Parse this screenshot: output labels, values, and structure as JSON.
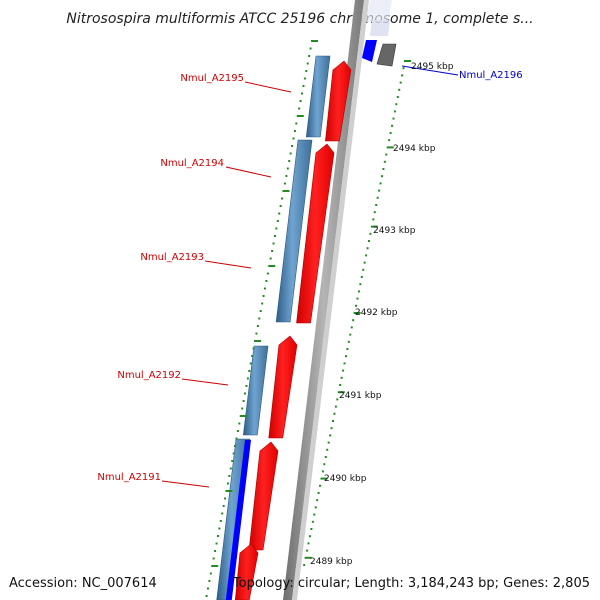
{
  "title": "Nitrosospira multiformis ATCC 25196 chromosome 1, complete s...",
  "footer": {
    "accession": "Accession: NC_007614",
    "topology": "Topology: circular; Length: 3,184,243 bp; Genes: 2,805"
  },
  "colors": {
    "backbone": "#8c8c8c",
    "forward_cds": "#ff0000",
    "reverse_cds": "#4682b4",
    "reverse_gene": "#0000ff",
    "gray_feature": "#666666",
    "tick": "#228b22",
    "label_red": "#cc0000",
    "label_blue": "#0000cc"
  },
  "scale_labels": [
    {
      "kbp": 2495,
      "label": "2495 kbp"
    },
    {
      "kbp": 2494,
      "label": "2494 kbp"
    },
    {
      "kbp": 2493,
      "label": "2493 kbp"
    },
    {
      "kbp": 2492,
      "label": "2492 kbp"
    },
    {
      "kbp": 2491,
      "label": "2491 kbp"
    },
    {
      "kbp": 2490,
      "label": "2490 kbp"
    },
    {
      "kbp": 2489,
      "label": "2489 kbp"
    }
  ],
  "gene_labels": [
    {
      "name": "Nmul_A2196",
      "color": "blue"
    },
    {
      "name": "Nmul_A2195",
      "color": "red"
    },
    {
      "name": "Nmul_A2194",
      "color": "red"
    },
    {
      "name": "Nmul_A2193",
      "color": "red"
    },
    {
      "name": "Nmul_A2192",
      "color": "red"
    },
    {
      "name": "Nmul_A2191",
      "color": "red"
    }
  ]
}
